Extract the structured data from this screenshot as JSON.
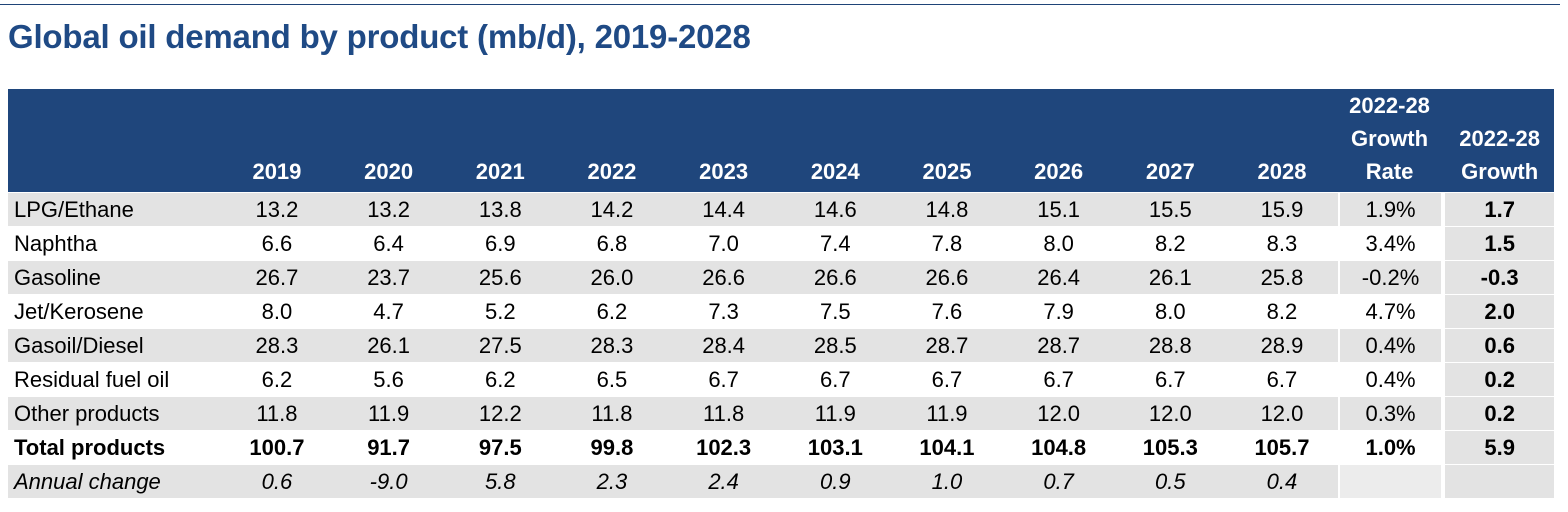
{
  "title": "Global oil demand by product (mb/d), 2019-2028",
  "table": {
    "header": [
      "",
      "2019",
      "2020",
      "2021",
      "2022",
      "2023",
      "2024",
      "2025",
      "2026",
      "2027",
      "2028",
      "2022-28 Growth Rate",
      "2022-28 Growth"
    ],
    "header_lines": {
      "rate": [
        "2022-28",
        "Growth",
        "Rate"
      ],
      "growth": [
        "2022-28",
        "Growth"
      ]
    },
    "rows": [
      {
        "label": "LPG/Ethane",
        "values": [
          "13.2",
          "13.2",
          "13.8",
          "14.2",
          "14.4",
          "14.6",
          "14.8",
          "15.1",
          "15.5",
          "15.9"
        ],
        "rate": "1.9%",
        "growth": "1.7"
      },
      {
        "label": "Naphtha",
        "values": [
          "6.6",
          "6.4",
          "6.9",
          "6.8",
          "7.0",
          "7.4",
          "7.8",
          "8.0",
          "8.2",
          "8.3"
        ],
        "rate": "3.4%",
        "growth": "1.5"
      },
      {
        "label": "Gasoline",
        "values": [
          "26.7",
          "23.7",
          "25.6",
          "26.0",
          "26.6",
          "26.6",
          "26.6",
          "26.4",
          "26.1",
          "25.8"
        ],
        "rate": "-0.2%",
        "growth": "-0.3"
      },
      {
        "label": "Jet/Kerosene",
        "values": [
          "8.0",
          "4.7",
          "5.2",
          "6.2",
          "7.3",
          "7.5",
          "7.6",
          "7.9",
          "8.0",
          "8.2"
        ],
        "rate": "4.7%",
        "growth": "2.0"
      },
      {
        "label": "Gasoil/Diesel",
        "values": [
          "28.3",
          "26.1",
          "27.5",
          "28.3",
          "28.4",
          "28.5",
          "28.7",
          "28.7",
          "28.8",
          "28.9"
        ],
        "rate": "0.4%",
        "growth": "0.6"
      },
      {
        "label": "Residual fuel oil",
        "values": [
          "6.2",
          "5.6",
          "6.2",
          "6.5",
          "6.7",
          "6.7",
          "6.7",
          "6.7",
          "6.7",
          "6.7"
        ],
        "rate": "0.4%",
        "growth": "0.2"
      },
      {
        "label": "Other products",
        "values": [
          "11.8",
          "11.9",
          "12.2",
          "11.8",
          "11.8",
          "11.9",
          "11.9",
          "12.0",
          "12.0",
          "12.0"
        ],
        "rate": "0.3%",
        "growth": "0.2"
      },
      {
        "label": "Total products",
        "values": [
          "100.7",
          "91.7",
          "97.5",
          "99.8",
          "102.3",
          "103.1",
          "104.1",
          "104.8",
          "105.3",
          "105.7"
        ],
        "rate": "1.0%",
        "growth": "5.9"
      },
      {
        "label": "Annual change",
        "values": [
          "0.6",
          "-9.0",
          "5.8",
          "2.3",
          "2.4",
          "0.9",
          "1.0",
          "0.7",
          "0.5",
          "0.4"
        ],
        "rate": "",
        "growth": ""
      }
    ]
  }
}
